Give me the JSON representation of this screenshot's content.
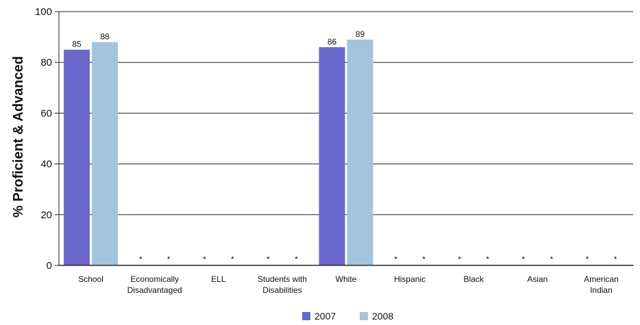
{
  "chart_data": {
    "type": "bar",
    "categories": [
      [
        "School"
      ],
      [
        "Economically",
        "Disadvantaged"
      ],
      [
        "ELL"
      ],
      [
        "Students with",
        "Disabilities"
      ],
      [
        "White"
      ],
      [
        "Hispanic"
      ],
      [
        "Black"
      ],
      [
        "Asian"
      ],
      [
        "American",
        "Indian"
      ]
    ],
    "series": [
      {
        "name": "2007",
        "color": "#6a67cd",
        "values": [
          85,
          null,
          null,
          null,
          86,
          null,
          null,
          null,
          null
        ],
        "labels": [
          "85",
          "*",
          "*",
          "*",
          "86",
          "*",
          "*",
          "*",
          "*"
        ]
      },
      {
        "name": "2008",
        "color": "#a4c4de",
        "values": [
          88,
          null,
          null,
          null,
          89,
          null,
          null,
          null,
          null
        ],
        "labels": [
          "88",
          "*",
          "*",
          "*",
          "89",
          "*",
          "*",
          "*",
          "*"
        ]
      }
    ],
    "ylabel": "% Proficient & Advanced",
    "ylim": [
      0,
      100
    ],
    "yticks": [
      0,
      20,
      40,
      60,
      80,
      100
    ],
    "grid": true,
    "legend": "bottom-center"
  }
}
